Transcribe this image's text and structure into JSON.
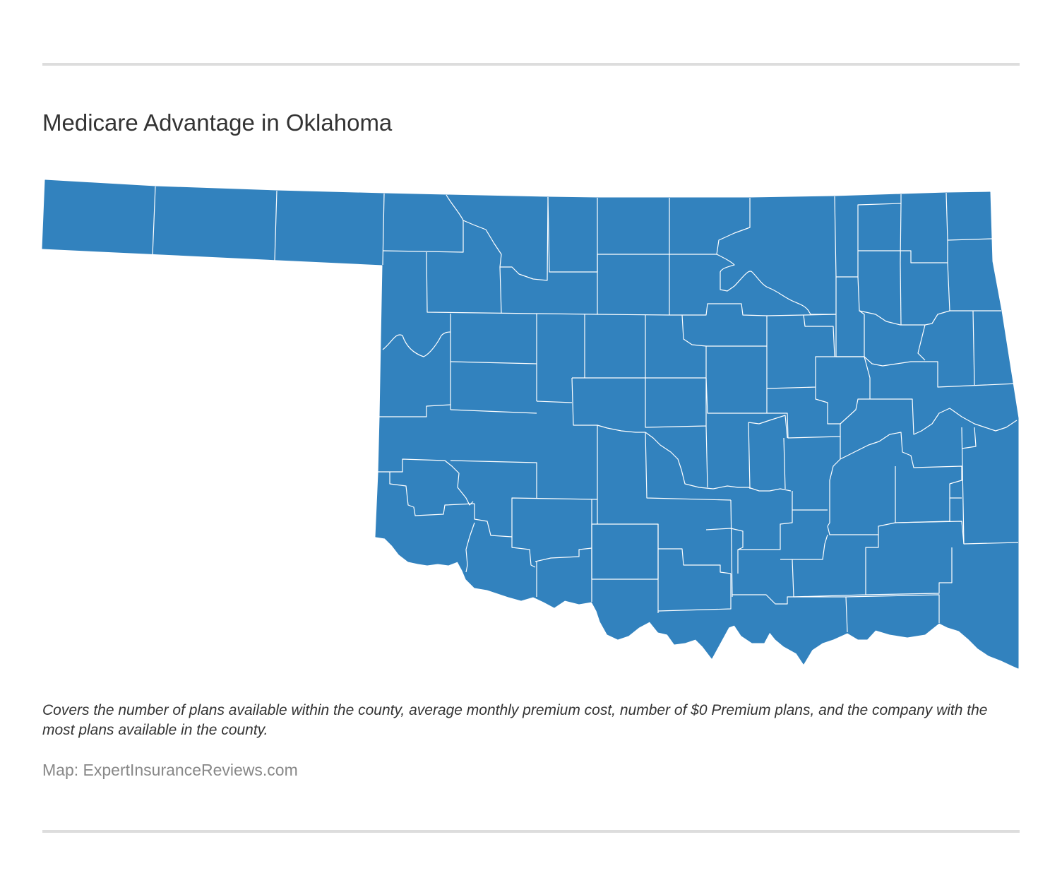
{
  "header": {
    "title": "Medicare Advantage in Oklahoma"
  },
  "map": {
    "region": "Oklahoma",
    "division": "county",
    "fill_color": "#3282be",
    "border_color": "#ffffff"
  },
  "footer": {
    "description": "Covers the number of plans available within the county, average monthly premium cost, number of $0 Premium plans, and the company with the most plans available in the county.",
    "credit": "Map: ExpertInsuranceReviews.com"
  },
  "colors": {
    "rule": "#dddddd",
    "title_text": "#333333",
    "credit_text": "#888888",
    "background": "#ffffff"
  }
}
